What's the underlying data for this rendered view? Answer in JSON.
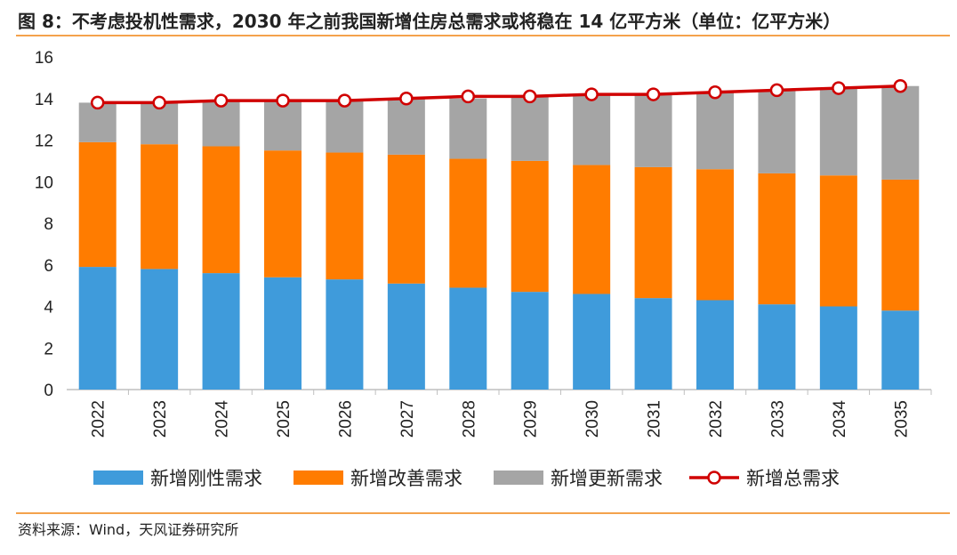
{
  "title": "图 8：不考虑投机性需求，2030 年之前我国新增住房总需求或将稳在 14 亿平方米（单位：亿平方米）",
  "source": "资料来源：Wind，天风证券研究所",
  "chart_data": {
    "type": "bar",
    "stacked": true,
    "categories": [
      "2022",
      "2023",
      "2024",
      "2025",
      "2026",
      "2027",
      "2028",
      "2029",
      "2030",
      "2031",
      "2032",
      "2033",
      "2034",
      "2035"
    ],
    "series": [
      {
        "name": "新增刚性需求",
        "type": "bar",
        "color": "#3F9BDB",
        "values": [
          5.9,
          5.8,
          5.6,
          5.4,
          5.3,
          5.1,
          4.9,
          4.7,
          4.6,
          4.4,
          4.3,
          4.1,
          4.0,
          3.8
        ]
      },
      {
        "name": "新增改善需求",
        "type": "bar",
        "color": "#FF7C00",
        "values": [
          6.0,
          6.0,
          6.1,
          6.1,
          6.1,
          6.2,
          6.2,
          6.3,
          6.2,
          6.3,
          6.3,
          6.3,
          6.3,
          6.3
        ]
      },
      {
        "name": "新增更新需求",
        "type": "bar",
        "color": "#A5A5A5",
        "values": [
          1.9,
          2.0,
          2.2,
          2.4,
          2.5,
          2.7,
          2.9,
          3.1,
          3.4,
          3.5,
          3.7,
          4.0,
          4.2,
          4.5
        ]
      },
      {
        "name": "新增总需求",
        "type": "line",
        "color": "#D00000",
        "values": [
          13.8,
          13.8,
          13.9,
          13.9,
          13.9,
          14.0,
          14.1,
          14.1,
          14.2,
          14.2,
          14.3,
          14.4,
          14.5,
          14.6
        ]
      }
    ],
    "ylim": [
      0,
      16
    ],
    "yticks": [
      0,
      2,
      4,
      6,
      8,
      10,
      12,
      14,
      16
    ],
    "grid": false,
    "legend_position": "bottom",
    "xlabel": "",
    "ylabel": ""
  }
}
